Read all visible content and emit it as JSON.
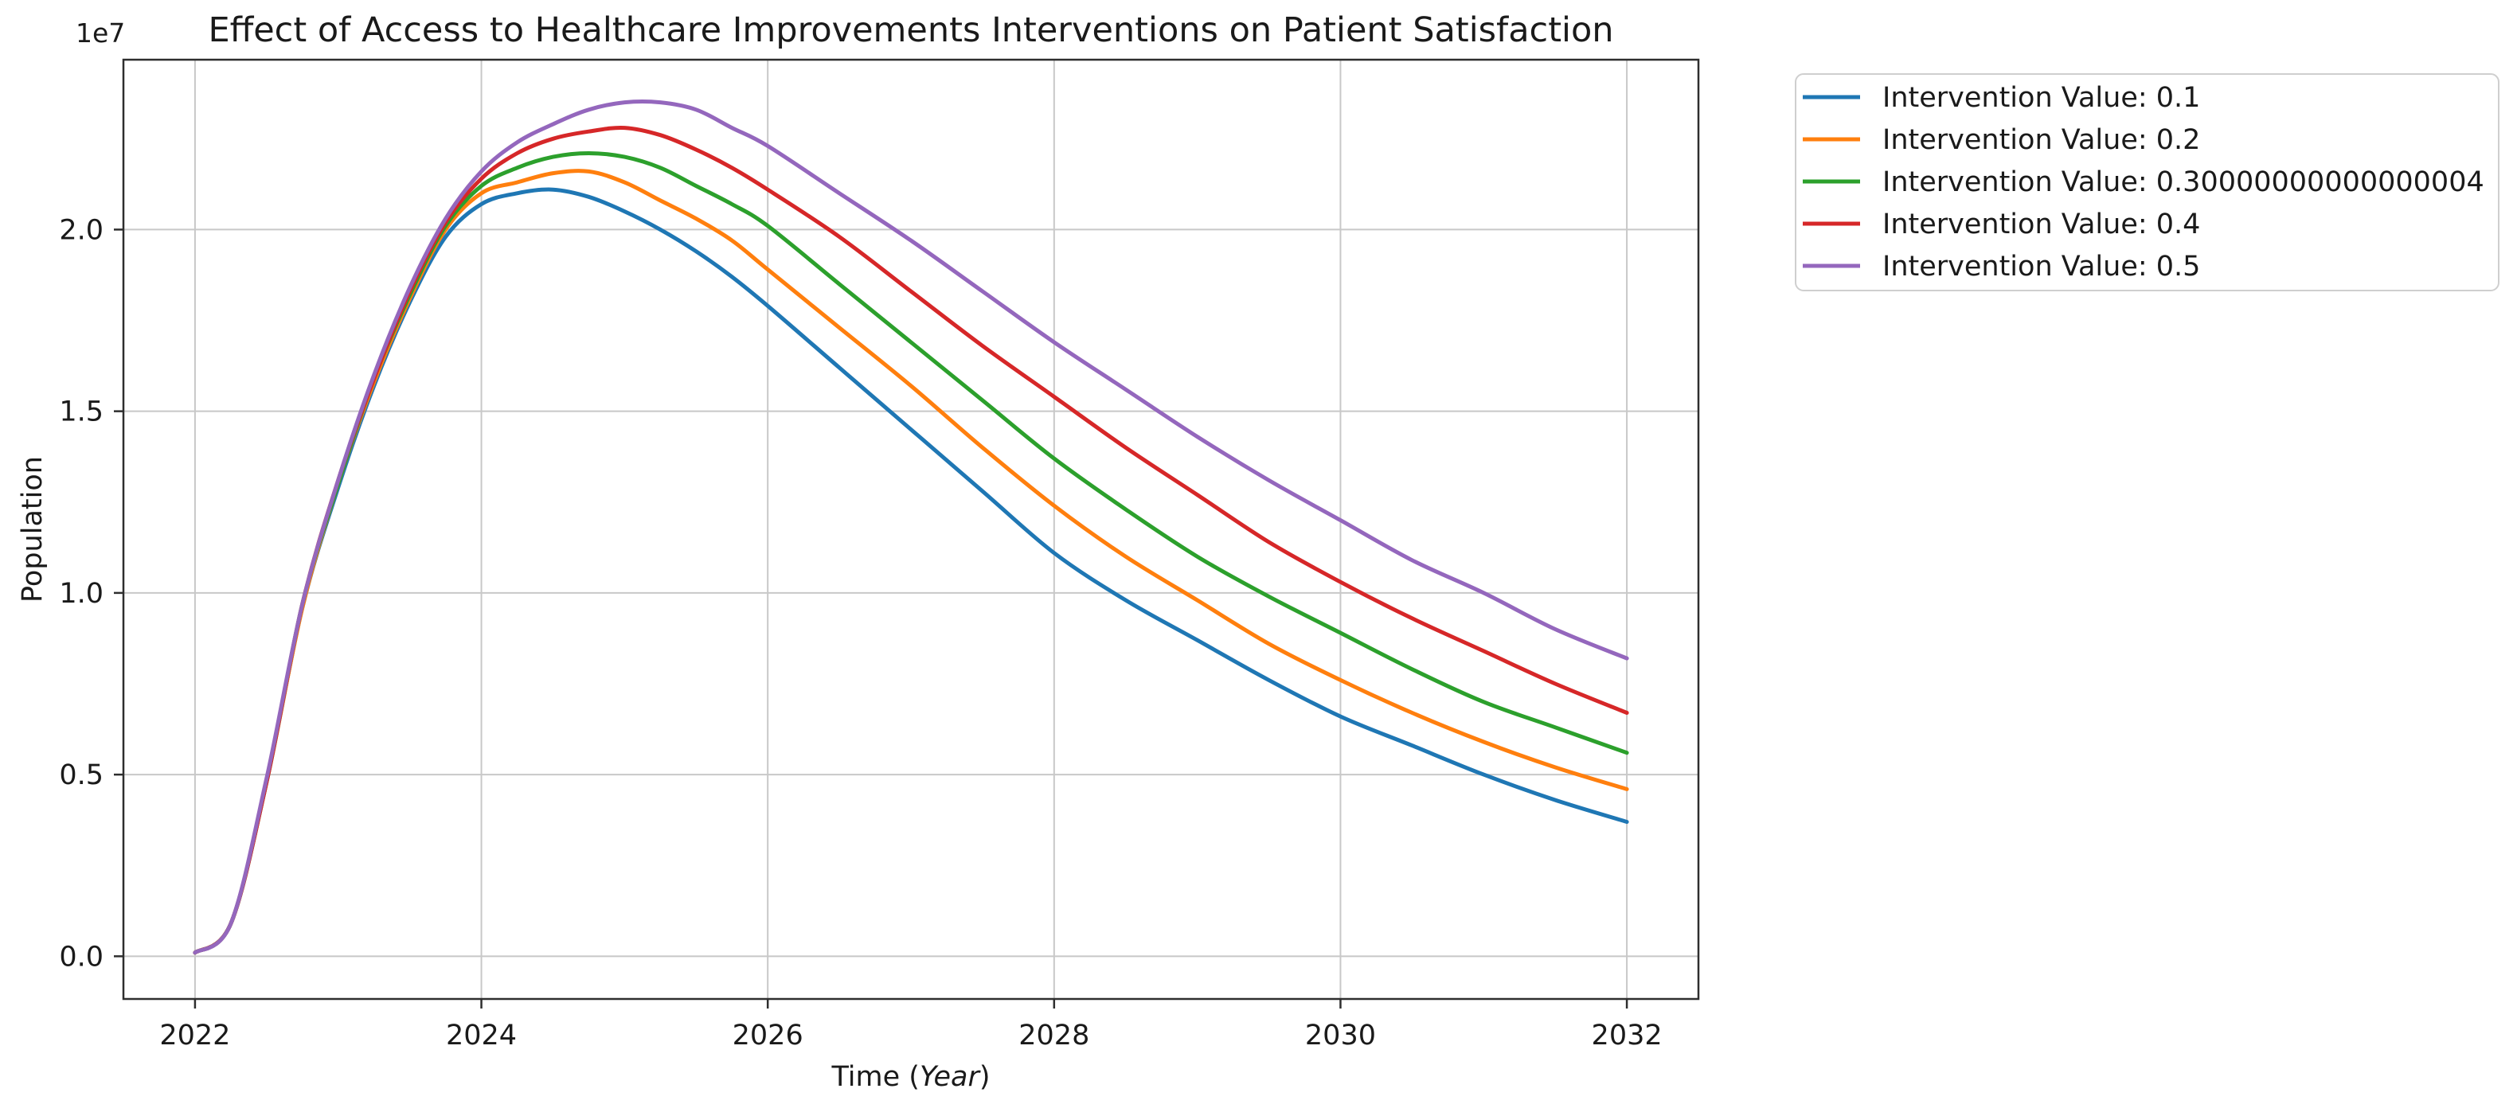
{
  "figure": {
    "title": "Effect of Access to Healthcare Improvements Interventions on Patient Satisfaction",
    "y_offset_label": "1e7",
    "ylabel": "Population",
    "xlabel_prefix": "Time (",
    "xlabel_italic": "Year",
    "xlabel_suffix": ")"
  },
  "chart_data": {
    "type": "line",
    "title": "Effect of Access to Healthcare Improvements Interventions on Patient Satisfaction",
    "xlabel": "Time (Year)",
    "ylabel": "Population",
    "y_scale_factor": "1e7",
    "grid": true,
    "legend_position": "outside-upper-right",
    "xlim": [
      2021.5,
      2032.5
    ],
    "ylim_1e7": [
      -0.1175,
      2.4675
    ],
    "x_ticks": [
      2022,
      2024,
      2026,
      2028,
      2030,
      2032
    ],
    "x_tick_labels": [
      "2022",
      "2024",
      "2026",
      "2028",
      "2030",
      "2032"
    ],
    "y_ticks_1e7": [
      0.0,
      0.5,
      1.0,
      1.5,
      2.0
    ],
    "y_tick_labels": [
      "0.0",
      "0.5",
      "1.0",
      "1.5",
      "2.0"
    ],
    "x": [
      2022,
      2022.25,
      2022.5,
      2022.75,
      2023,
      2023.25,
      2023.5,
      2023.75,
      2024,
      2024.25,
      2024.5,
      2024.75,
      2025,
      2025.25,
      2025.5,
      2025.75,
      2026,
      2026.5,
      2027,
      2027.5,
      2028,
      2028.5,
      2029,
      2029.5,
      2030,
      2030.5,
      2031,
      2031.5,
      2032
    ],
    "series": [
      {
        "name": "Intervention Value: 0.1",
        "color": "#1f77b4",
        "values_1e7": [
          0.01,
          0.09,
          0.48,
          0.96,
          1.29,
          1.57,
          1.8,
          1.98,
          2.07,
          2.1,
          2.11,
          2.09,
          2.05,
          2.0,
          1.94,
          1.87,
          1.79,
          1.62,
          1.45,
          1.28,
          1.11,
          0.98,
          0.87,
          0.76,
          0.66,
          0.58,
          0.5,
          0.43,
          0.37
        ]
      },
      {
        "name": "Intervention Value: 0.2",
        "color": "#ff7f0e",
        "values_1e7": [
          0.01,
          0.09,
          0.48,
          0.96,
          1.3,
          1.58,
          1.81,
          2.0,
          2.1,
          2.13,
          2.155,
          2.16,
          2.13,
          2.08,
          2.03,
          1.97,
          1.89,
          1.73,
          1.57,
          1.4,
          1.24,
          1.1,
          0.98,
          0.86,
          0.76,
          0.67,
          0.59,
          0.52,
          0.46
        ]
      },
      {
        "name": "Intervention Value: 0.30000000000000004",
        "color": "#2ca02c",
        "values_1e7": [
          0.01,
          0.09,
          0.48,
          0.97,
          1.3,
          1.59,
          1.82,
          2.01,
          2.12,
          2.17,
          2.2,
          2.21,
          2.2,
          2.17,
          2.12,
          2.07,
          2.01,
          1.85,
          1.69,
          1.53,
          1.37,
          1.23,
          1.1,
          0.99,
          0.89,
          0.79,
          0.7,
          0.63,
          0.56
        ]
      },
      {
        "name": "Intervention Value: 0.4",
        "color": "#d62728",
        "values_1e7": [
          0.01,
          0.09,
          0.48,
          0.97,
          1.31,
          1.59,
          1.83,
          2.02,
          2.14,
          2.21,
          2.25,
          2.27,
          2.28,
          2.26,
          2.22,
          2.17,
          2.11,
          1.98,
          1.83,
          1.68,
          1.54,
          1.4,
          1.27,
          1.14,
          1.03,
          0.93,
          0.84,
          0.75,
          0.67
        ]
      },
      {
        "name": "Intervention Value: 0.5",
        "color": "#9467bd",
        "values_1e7": [
          0.01,
          0.09,
          0.49,
          0.97,
          1.31,
          1.6,
          1.84,
          2.03,
          2.16,
          2.24,
          2.29,
          2.33,
          2.35,
          2.35,
          2.33,
          2.28,
          2.23,
          2.1,
          1.97,
          1.83,
          1.69,
          1.56,
          1.43,
          1.31,
          1.2,
          1.09,
          1.0,
          0.9,
          0.82
        ]
      }
    ]
  }
}
